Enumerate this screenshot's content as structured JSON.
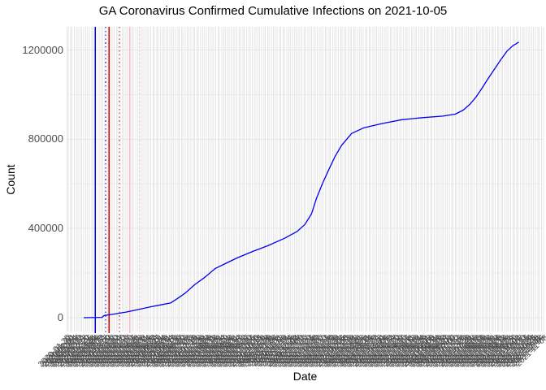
{
  "page": {
    "window_title": "GA Coronavirus Confirmed Cumulative Infections on 2021-10-05"
  },
  "chart_data": {
    "type": "line",
    "title": "GA Coronavirus Confirmed Cumulative Infections on 2021-10-05",
    "xlabel": "Date",
    "ylabel": "Count",
    "background": "#ffffff",
    "grid_color_major": "#e6e6e6",
    "grid_color_minor": "#f0f0f0",
    "axis_text_color": "#4d4d4d",
    "x_domain": [
      "2020-02-17",
      "2021-10-05"
    ],
    "ylim": [
      0,
      1300000
    ],
    "y_axis": {
      "ticks": [
        {
          "label": "0",
          "value": 0
        },
        {
          "label": "400000",
          "value": 400000
        },
        {
          "label": "800000",
          "value": 800000
        },
        {
          "label": "1200000",
          "value": 1200000
        }
      ],
      "minor_values": [
        200000,
        600000,
        1000000
      ]
    },
    "x_axis": {
      "note": "dense overlapping date labels, one per gridline, rotated 45 degrees, format YYYY-MM-DD",
      "tick_start": "2020-01-25",
      "tick_end": "2021-11-08",
      "tick_count": 250,
      "label_angle_deg": 45
    },
    "series": [
      {
        "name": "cumulative-confirmed-infections",
        "color": "#0000ee",
        "points": [
          [
            "2020-02-17",
            0
          ],
          [
            "2020-03-13",
            1500
          ],
          [
            "2020-03-16",
            10000
          ],
          [
            "2020-03-29",
            16000
          ],
          [
            "2020-04-15",
            25000
          ],
          [
            "2020-05-01",
            36000
          ],
          [
            "2020-05-18",
            48000
          ],
          [
            "2020-06-04",
            59000
          ],
          [
            "2020-06-15",
            66000
          ],
          [
            "2020-06-24",
            85000
          ],
          [
            "2020-07-05",
            110000
          ],
          [
            "2020-07-18",
            148000
          ],
          [
            "2020-08-01",
            181000
          ],
          [
            "2020-08-15",
            220000
          ],
          [
            "2020-08-30",
            244000
          ],
          [
            "2020-09-14",
            268000
          ],
          [
            "2020-10-04",
            295000
          ],
          [
            "2020-10-27",
            324000
          ],
          [
            "2020-11-18",
            356000
          ],
          [
            "2020-12-05",
            386000
          ],
          [
            "2020-12-16",
            418000
          ],
          [
            "2020-12-25",
            465000
          ],
          [
            "2021-01-01",
            536000
          ],
          [
            "2021-01-09",
            601000
          ],
          [
            "2021-01-17",
            659000
          ],
          [
            "2021-01-26",
            721000
          ],
          [
            "2021-02-04",
            772000
          ],
          [
            "2021-02-18",
            826000
          ],
          [
            "2021-03-07",
            852000
          ],
          [
            "2021-04-01",
            871000
          ],
          [
            "2021-04-28",
            888000
          ],
          [
            "2021-05-26",
            897000
          ],
          [
            "2021-06-23",
            904000
          ],
          [
            "2021-07-10",
            913000
          ],
          [
            "2021-07-21",
            931000
          ],
          [
            "2021-07-30",
            957000
          ],
          [
            "2021-08-07",
            988000
          ],
          [
            "2021-08-15",
            1026000
          ],
          [
            "2021-08-24",
            1073000
          ],
          [
            "2021-09-02",
            1116000
          ],
          [
            "2021-09-11",
            1160000
          ],
          [
            "2021-09-19",
            1196000
          ],
          [
            "2021-09-27",
            1220000
          ],
          [
            "2021-10-05",
            1236000
          ]
        ]
      }
    ],
    "vlines": [
      {
        "date": "2020-03-04",
        "color": "#0000cc",
        "style": "solid"
      },
      {
        "date": "2020-03-18",
        "color": "#0000cc",
        "style": "dotted"
      },
      {
        "date": "2020-03-23",
        "color": "#e00000",
        "style": "solid"
      },
      {
        "date": "2020-04-06",
        "color": "#bb2222",
        "style": "dotted"
      },
      {
        "date": "2020-04-20",
        "color": "#ffb6c1",
        "style": "solid"
      },
      {
        "date": "2020-05-04",
        "color": "#ffccd5",
        "style": "dotted"
      }
    ]
  }
}
